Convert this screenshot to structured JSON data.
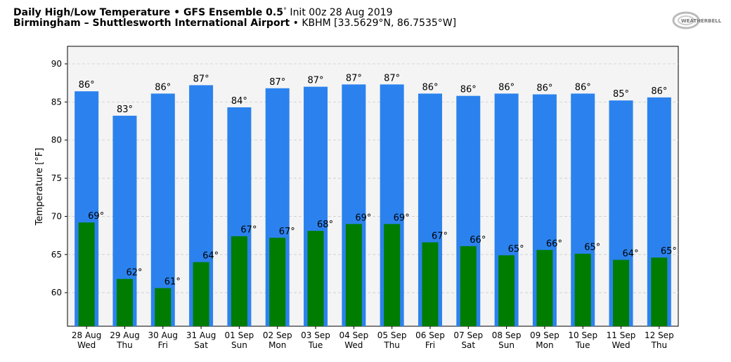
{
  "header": {
    "title_bold": "Daily High/Low Temperature • GFS Ensemble 0.5",
    "title_deg": "°",
    "title_normal": " Init 00z 28 Aug 2019",
    "subtitle_bold": "Birmingham – Shuttlesworth International Airport",
    "subtitle_normal": " • KBHM [33.5629°N, 86.7535°W]",
    "logo_text": "WeatherBELL"
  },
  "chart_data": {
    "type": "bar",
    "ylabel": "Temperature [°F]",
    "ylim": [
      55.6,
      92.3
    ],
    "yticks": [
      60,
      65,
      70,
      75,
      80,
      85,
      90
    ],
    "grid": true,
    "categories": [
      "28 Aug",
      "29 Aug",
      "30 Aug",
      "31 Aug",
      "01 Sep",
      "02 Sep",
      "03 Sep",
      "04 Sep",
      "05 Sep",
      "06 Sep",
      "07 Sep",
      "08 Sep",
      "09 Sep",
      "10 Sep",
      "11 Sep",
      "12 Sep"
    ],
    "weekdays": [
      "Wed",
      "Thu",
      "Fri",
      "Sat",
      "Sun",
      "Mon",
      "Tue",
      "Wed",
      "Thu",
      "Fri",
      "Sat",
      "Sun",
      "Mon",
      "Tue",
      "Wed",
      "Thu"
    ],
    "series": [
      {
        "name": "High",
        "color": "#2b82ee",
        "values": [
          86.4,
          83.2,
          86.1,
          87.2,
          84.3,
          86.8,
          87.0,
          87.3,
          87.3,
          86.1,
          85.8,
          86.1,
          86.0,
          86.1,
          85.2,
          85.6
        ],
        "labels": [
          "86°",
          "83°",
          "86°",
          "87°",
          "84°",
          "87°",
          "87°",
          "87°",
          "87°",
          "86°",
          "86°",
          "86°",
          "86°",
          "86°",
          "85°",
          "86°"
        ]
      },
      {
        "name": "Low",
        "color": "#007d00",
        "values": [
          69.2,
          61.8,
          60.6,
          64.0,
          67.4,
          67.2,
          68.1,
          69.0,
          69.0,
          66.6,
          66.1,
          64.9,
          65.6,
          65.1,
          64.3,
          64.6
        ],
        "labels": [
          "69°",
          "62°",
          "61°",
          "64°",
          "67°",
          "67°",
          "68°",
          "69°",
          "69°",
          "67°",
          "66°",
          "65°",
          "66°",
          "65°",
          "64°",
          "65°"
        ]
      }
    ]
  }
}
